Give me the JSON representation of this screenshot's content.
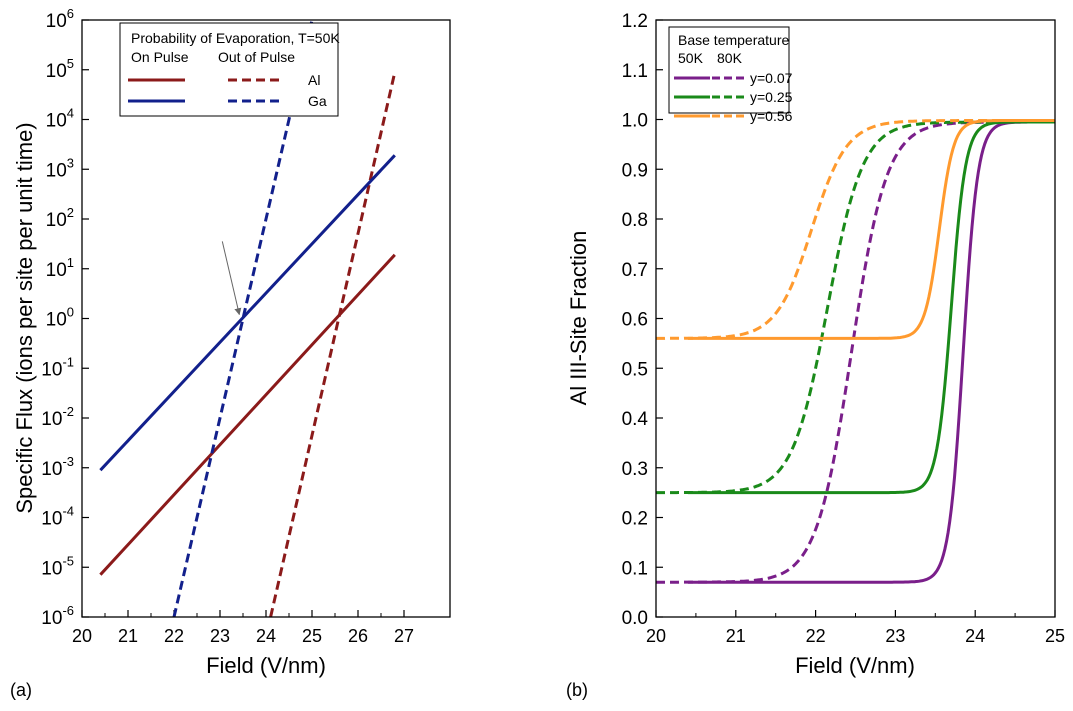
{
  "colors": {
    "al": "#8b1a1a",
    "ga": "#12208c",
    "purple": "#7a1f8a",
    "green": "#1a8a1a",
    "orange": "#ff9a2e",
    "axis": "#000000",
    "pointer": "#666666"
  },
  "chart_data": [
    {
      "type": "line",
      "panel_label": "(a)",
      "xlabel": "Field (V/nm)",
      "ylabel": "Specific Flux (ions per site per unit time)",
      "xlim": [
        20,
        28
      ],
      "ylim_log10": [
        -6,
        6
      ],
      "y_scale": "log",
      "x_ticks": [
        20,
        21,
        22,
        23,
        24,
        25,
        26,
        27
      ],
      "y_tick_exponents": [
        -6,
        -5,
        -4,
        -3,
        -2,
        -1,
        0,
        1,
        2,
        3,
        4,
        5,
        6
      ],
      "legend": {
        "title": "Probability of Evaporation, T=50K",
        "col_labels": [
          "On Pulse",
          "Out of Pulse"
        ],
        "placement": "top-left",
        "rows": [
          {
            "label": "Al",
            "color": "al"
          },
          {
            "label": "Ga",
            "color": "ga"
          }
        ]
      },
      "series": [
        {
          "name": "Al",
          "style": "solid",
          "color": "al",
          "x": [
            20.4,
            26.8
          ],
          "y_log10": [
            -5.15,
            1.28
          ]
        },
        {
          "name": "Al",
          "style": "dashed",
          "color": "al",
          "x": [
            24.1,
            26.8
          ],
          "y_log10": [
            -6.0,
            4.95
          ]
        },
        {
          "name": "Ga",
          "style": "solid",
          "color": "ga",
          "x": [
            20.4,
            26.8
          ],
          "y_log10": [
            -3.05,
            3.28
          ]
        },
        {
          "name": "Ga",
          "style": "dashed",
          "color": "ga",
          "x": [
            22.0,
            25.0
          ],
          "y_log10": [
            -6.0,
            6.0
          ]
        }
      ],
      "annotation": {
        "type": "arrow",
        "from": [
          23.05,
          1.55
        ],
        "to": [
          23.42,
          0.08
        ]
      }
    },
    {
      "type": "line",
      "panel_label": "(b)",
      "xlabel": "Field (V/nm)",
      "ylabel": "Al III-Site Fraction",
      "xlim": [
        20,
        25
      ],
      "ylim": [
        0,
        1.2
      ],
      "x_ticks": [
        20,
        21,
        22,
        23,
        24,
        25
      ],
      "y_ticks": [
        "0.0",
        "0.1",
        "0.2",
        "0.3",
        "0.4",
        "0.5",
        "0.6",
        "0.7",
        "0.8",
        "0.9",
        "1.0",
        "1.1",
        "1.2"
      ],
      "legend": {
        "title": "Base temperature",
        "col_labels": [
          "50K",
          "80K"
        ],
        "placement": "top-left",
        "rows": [
          {
            "label": "y=0.07",
            "color": "purple"
          },
          {
            "label": "y=0.25",
            "color": "green"
          },
          {
            "label": "y=0.56",
            "color": "orange"
          }
        ]
      },
      "series": [
        {
          "name": "y=0.07",
          "temperature": "50K",
          "style": "solid",
          "color": "purple",
          "base": 0.07,
          "top": 0.995,
          "midpoint": 23.85,
          "width": 0.09,
          "x_start": 20.4
        },
        {
          "name": "y=0.07",
          "temperature": "80K",
          "style": "dashed",
          "color": "purple",
          "base": 0.07,
          "top": 0.995,
          "midpoint": 22.45,
          "width": 0.22,
          "x_start": 20.0
        },
        {
          "name": "y=0.25",
          "temperature": "50K",
          "style": "solid",
          "color": "green",
          "base": 0.25,
          "top": 0.995,
          "midpoint": 23.7,
          "width": 0.09,
          "x_start": 20.4
        },
        {
          "name": "y=0.25",
          "temperature": "80K",
          "style": "dashed",
          "color": "green",
          "base": 0.25,
          "top": 0.995,
          "midpoint": 22.15,
          "width": 0.22,
          "x_start": 20.0
        },
        {
          "name": "y=0.56",
          "temperature": "50K",
          "style": "solid",
          "color": "orange",
          "base": 0.56,
          "top": 0.998,
          "midpoint": 23.55,
          "width": 0.09,
          "x_start": 20.4
        },
        {
          "name": "y=0.56",
          "temperature": "80K",
          "style": "dashed",
          "color": "orange",
          "base": 0.56,
          "top": 0.998,
          "midpoint": 21.95,
          "width": 0.22,
          "x_start": 20.0
        }
      ]
    }
  ]
}
